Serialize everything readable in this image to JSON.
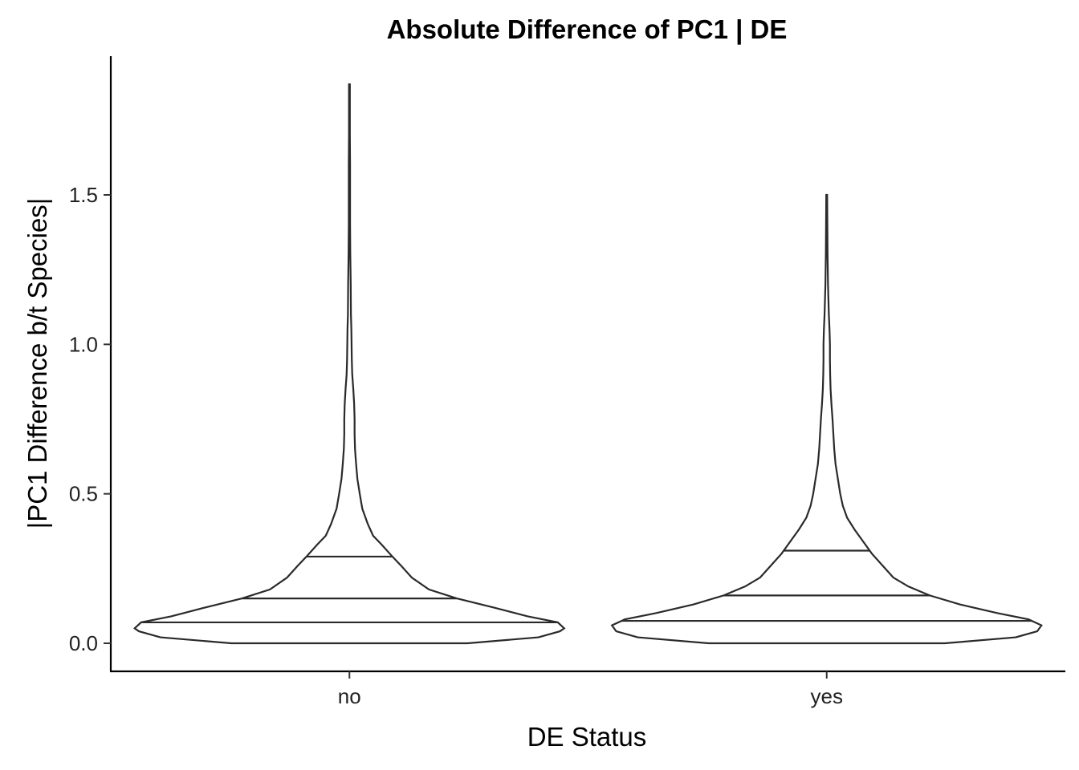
{
  "chart_data": {
    "type": "violin",
    "title": "Absolute Difference of PC1 | DE",
    "xlabel": "DE Status",
    "ylabel": "|PC1 Difference b/t Species|",
    "categories": [
      "no",
      "yes"
    ],
    "ylim": [
      -0.09,
      1.96
    ],
    "yticks": [
      0.0,
      0.5,
      1.0,
      1.5
    ],
    "ytick_labels": [
      "0.0",
      "0.5",
      "1.0",
      "1.5"
    ],
    "grid": false,
    "legend": "none",
    "series": [
      {
        "category": "no",
        "min": 0.0,
        "max": 1.87,
        "quantiles": [
          0.07,
          0.15,
          0.29
        ],
        "density": [
          [
            0.0,
            0.55
          ],
          [
            0.02,
            0.88
          ],
          [
            0.04,
            0.98
          ],
          [
            0.05,
            1.0
          ],
          [
            0.07,
            0.97
          ],
          [
            0.09,
            0.83
          ],
          [
            0.12,
            0.67
          ],
          [
            0.15,
            0.5
          ],
          [
            0.18,
            0.37
          ],
          [
            0.22,
            0.29
          ],
          [
            0.26,
            0.24
          ],
          [
            0.29,
            0.2
          ],
          [
            0.33,
            0.15
          ],
          [
            0.36,
            0.11
          ],
          [
            0.4,
            0.085
          ],
          [
            0.45,
            0.06
          ],
          [
            0.5,
            0.048
          ],
          [
            0.55,
            0.037
          ],
          [
            0.6,
            0.031
          ],
          [
            0.65,
            0.026
          ],
          [
            0.7,
            0.024
          ],
          [
            0.75,
            0.024
          ],
          [
            0.8,
            0.022
          ],
          [
            0.85,
            0.018
          ],
          [
            0.9,
            0.013
          ],
          [
            0.95,
            0.011
          ],
          [
            1.0,
            0.01
          ],
          [
            1.05,
            0.009
          ],
          [
            1.1,
            0.007
          ],
          [
            1.2,
            0.006
          ],
          [
            1.3,
            0.004
          ],
          [
            1.4,
            0.003
          ],
          [
            1.5,
            0.003
          ],
          [
            1.6,
            0.003
          ],
          [
            1.7,
            0.002
          ],
          [
            1.8,
            0.002
          ],
          [
            1.87,
            0.002
          ]
        ]
      },
      {
        "category": "yes",
        "min": 0.0,
        "max": 1.5,
        "quantiles": [
          0.075,
          0.16,
          0.31
        ],
        "density": [
          [
            0.0,
            0.55
          ],
          [
            0.02,
            0.88
          ],
          [
            0.04,
            0.98
          ],
          [
            0.06,
            1.0
          ],
          [
            0.08,
            0.94
          ],
          [
            0.1,
            0.8
          ],
          [
            0.13,
            0.62
          ],
          [
            0.16,
            0.48
          ],
          [
            0.19,
            0.38
          ],
          [
            0.22,
            0.31
          ],
          [
            0.26,
            0.26
          ],
          [
            0.3,
            0.21
          ],
          [
            0.34,
            0.17
          ],
          [
            0.38,
            0.13
          ],
          [
            0.42,
            0.095
          ],
          [
            0.46,
            0.075
          ],
          [
            0.5,
            0.063
          ],
          [
            0.55,
            0.052
          ],
          [
            0.6,
            0.041
          ],
          [
            0.65,
            0.035
          ],
          [
            0.7,
            0.031
          ],
          [
            0.75,
            0.027
          ],
          [
            0.8,
            0.022
          ],
          [
            0.85,
            0.018
          ],
          [
            0.9,
            0.016
          ],
          [
            0.95,
            0.015
          ],
          [
            1.0,
            0.015
          ],
          [
            1.05,
            0.013
          ],
          [
            1.1,
            0.01
          ],
          [
            1.15,
            0.008
          ],
          [
            1.2,
            0.006
          ],
          [
            1.3,
            0.004
          ],
          [
            1.4,
            0.003
          ],
          [
            1.5,
            0.002
          ]
        ]
      }
    ]
  }
}
